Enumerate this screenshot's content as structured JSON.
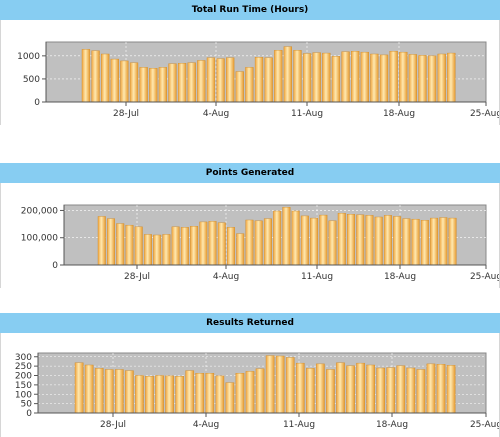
{
  "chart_data": [
    {
      "type": "bar",
      "title": "Total Run Time (Hours)",
      "ylim": [
        0,
        1300
      ],
      "y_ticks": [
        0,
        500,
        1000
      ],
      "y_tick_labels": [
        "0",
        "500",
        "1000"
      ],
      "x_tick_labels": [
        "28-Jul",
        "4-Aug",
        "11-Aug",
        "18-Aug",
        "25-Aug"
      ],
      "grid": true,
      "values": [
        1140,
        1110,
        1040,
        930,
        890,
        850,
        750,
        730,
        750,
        830,
        840,
        850,
        900,
        960,
        940,
        960,
        660,
        750,
        970,
        960,
        1120,
        1200,
        1120,
        1050,
        1070,
        1060,
        990,
        1090,
        1100,
        1080,
        1040,
        1020,
        1100,
        1080,
        1030,
        1010,
        1000,
        1040,
        1060
      ]
    },
    {
      "type": "bar",
      "title": "Points Generated",
      "ylim": [
        0,
        220000
      ],
      "y_ticks": [
        0,
        100000,
        200000
      ],
      "y_tick_labels": [
        "0",
        "100,000",
        "200,000"
      ],
      "x_tick_labels": [
        "28-Jul",
        "4-Aug",
        "11-Aug",
        "18-Aug",
        "25-Aug"
      ],
      "grid": true,
      "values": [
        178000,
        170000,
        152000,
        146000,
        140000,
        112000,
        110000,
        112000,
        140000,
        138000,
        142000,
        158000,
        160000,
        155000,
        138000,
        115000,
        165000,
        162000,
        170000,
        198000,
        212000,
        198000,
        180000,
        172000,
        183000,
        162000,
        190000,
        186000,
        184000,
        182000,
        176000,
        182000,
        178000,
        170000,
        168000,
        164000,
        172000,
        174000,
        172000
      ]
    },
    {
      "type": "bar",
      "title": "Results Returned",
      "ylim": [
        0,
        320
      ],
      "y_ticks": [
        0,
        50,
        100,
        150,
        200,
        250,
        300
      ],
      "y_tick_labels": [
        "0",
        "50",
        "100",
        "150",
        "200",
        "250",
        "300"
      ],
      "x_tick_labels": [
        "28-Jul",
        "4-Aug",
        "11-Aug",
        "18-Aug",
        "25-Aug"
      ],
      "grid": true,
      "values": [
        268,
        256,
        238,
        232,
        232,
        226,
        200,
        196,
        200,
        198,
        196,
        226,
        212,
        212,
        198,
        162,
        212,
        222,
        236,
        306,
        304,
        296,
        266,
        238,
        262,
        232,
        268,
        252,
        266,
        256,
        240,
        242,
        252,
        240,
        232,
        262,
        260,
        254
      ]
    }
  ]
}
